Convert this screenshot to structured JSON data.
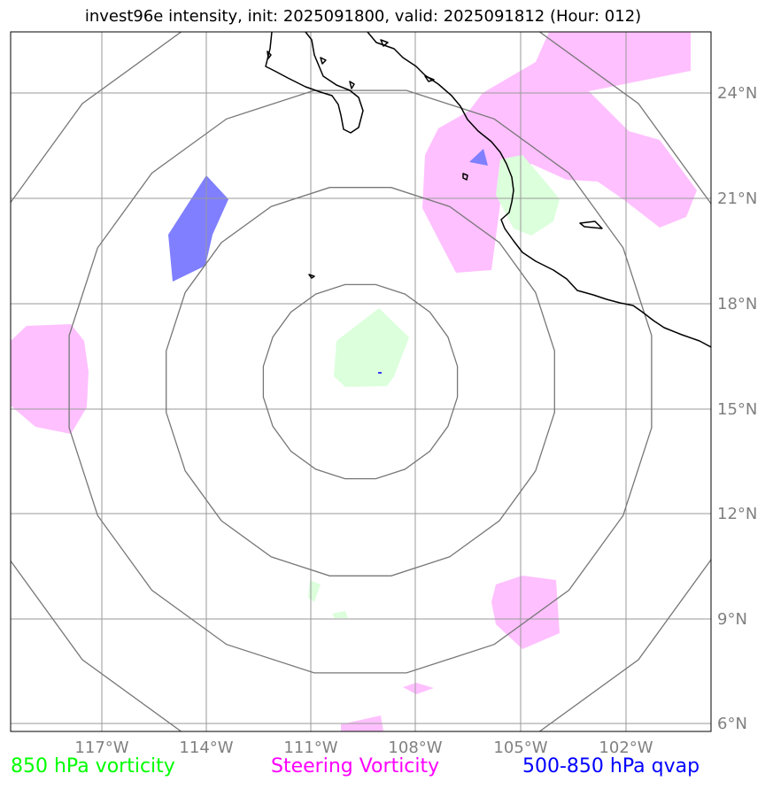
{
  "title": "invest96e intensity, init: 2025091800, valid: 2025091812 (Hour: 012)",
  "lat_labels": [
    "24°N",
    "21°N",
    "18°N",
    "15°N",
    "12°N",
    "9°N",
    "6°N"
  ],
  "lon_labels": [
    "117°W",
    "114°W",
    "111°W",
    "108°W",
    "105°W",
    "102°W"
  ],
  "legend": [
    {
      "label": "850 hPa vorticity",
      "color": "#00ff00"
    },
    {
      "label": "Steering Vorticity",
      "color": "#ff00ff"
    },
    {
      "label": "500-850 hPa qvap",
      "color": "#0000ff"
    }
  ],
  "colors": {
    "steering": "#ffc0ff",
    "vort850": "#dcffdc",
    "qvap": "#7f7fff",
    "gridline": "#9a9a9a",
    "range_ring": "#777777",
    "coast": "#000000",
    "tick_label": "#808080"
  }
}
